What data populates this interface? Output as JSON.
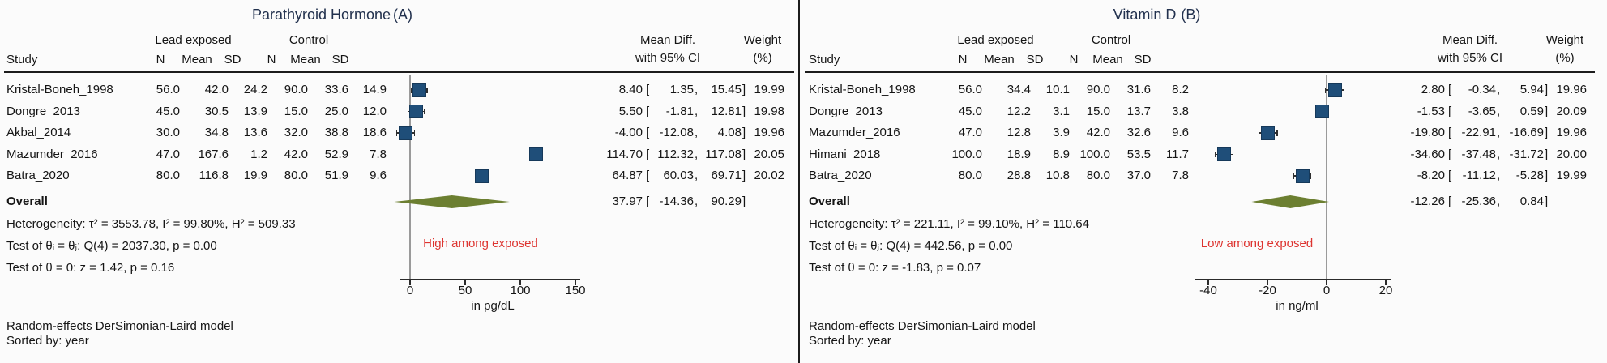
{
  "colors": {
    "marker": "#1f4e79",
    "marker_border": "#16395a",
    "diamond": "#6c7f31",
    "direction_label": "#dd3430",
    "title": "#22314e"
  },
  "footnote": {
    "line1": "Random-effects DerSimonian-Laird model",
    "line2": "Sorted by: year"
  },
  "panels": [
    {
      "title": "Parathyroid Hormone",
      "title_suffix": "(A)",
      "group1_header": "Lead exposed",
      "group2_header": "Control",
      "study_header": "Study",
      "cols": [
        "N",
        "Mean",
        "SD",
        "N",
        "Mean",
        "SD"
      ],
      "effect_header_line1": "Mean Diff.",
      "effect_header_line2": "with 95% CI",
      "weight_header_line1": "Weight",
      "weight_header_line2": "(%)",
      "rows": [
        {
          "study": "Kristal-Boneh_1998",
          "n1": "56.0",
          "mean1": "42.0",
          "sd1": "24.2",
          "n2": "90.0",
          "mean2": "33.6",
          "sd2": "14.9",
          "est": "8.40",
          "lo": "1.35",
          "hi": "15.45",
          "weight": "19.99"
        },
        {
          "study": "Dongre_2013",
          "n1": "45.0",
          "mean1": "30.5",
          "sd1": "13.9",
          "n2": "15.0",
          "mean2": "25.0",
          "sd2": "12.0",
          "est": "5.50",
          "lo": "-1.81",
          "hi": "12.81",
          "weight": "19.98"
        },
        {
          "study": "Akbal_2014",
          "n1": "30.0",
          "mean1": "34.8",
          "sd1": "13.6",
          "n2": "32.0",
          "mean2": "38.8",
          "sd2": "18.6",
          "est": "-4.00",
          "lo": "-12.08",
          "hi": "4.08",
          "weight": "19.96"
        },
        {
          "study": "Mazumder_2016",
          "n1": "47.0",
          "mean1": "167.6",
          "sd1": "1.2",
          "n2": "42.0",
          "mean2": "52.9",
          "sd2": "7.8",
          "est": "114.70",
          "lo": "112.32",
          "hi": "117.08",
          "weight": "20.05"
        },
        {
          "study": "Batra_2020",
          "n1": "80.0",
          "mean1": "116.8",
          "sd1": "19.9",
          "n2": "80.0",
          "mean2": "51.9",
          "sd2": "9.6",
          "est": "64.87",
          "lo": "60.03",
          "hi": "69.71",
          "weight": "20.02"
        }
      ],
      "overall": {
        "label": "Overall",
        "est": "37.97",
        "lo": "-14.36",
        "hi": "90.29"
      },
      "stats": [
        "Heterogeneity: τ² = 3553.78, I² = 99.80%, H² = 509.33",
        "Test of θᵢ = θⱼ: Q(4) = 2037.30, p = 0.00",
        "Test of θ = 0: z = 1.42, p = 0.16"
      ],
      "direction_label": "High among exposed",
      "axis_unit": "in pg/dL"
    },
    {
      "title": "Vitamin D",
      "title_suffix": "(B)",
      "group1_header": "Lead exposed",
      "group2_header": "Control",
      "study_header": "Study",
      "cols": [
        "N",
        "Mean",
        "SD",
        "N",
        "Mean",
        "SD"
      ],
      "effect_header_line1": "Mean Diff.",
      "effect_header_line2": "with 95% CI",
      "weight_header_line1": "Weight",
      "weight_header_line2": "(%)",
      "rows": [
        {
          "study": "Kristal-Boneh_1998",
          "n1": "56.0",
          "mean1": "34.4",
          "sd1": "10.1",
          "n2": "90.0",
          "mean2": "31.6",
          "sd2": "8.2",
          "est": "2.80",
          "lo": "-0.34",
          "hi": "5.94",
          "weight": "19.96"
        },
        {
          "study": "Dongre_2013",
          "n1": "45.0",
          "mean1": "12.2",
          "sd1": "3.1",
          "n2": "15.0",
          "mean2": "13.7",
          "sd2": "3.8",
          "est": "-1.53",
          "lo": "-3.65",
          "hi": "0.59",
          "weight": "20.09"
        },
        {
          "study": "Mazumder_2016",
          "n1": "47.0",
          "mean1": "12.8",
          "sd1": "3.9",
          "n2": "42.0",
          "mean2": "32.6",
          "sd2": "9.6",
          "est": "-19.80",
          "lo": "-22.91",
          "hi": "-16.69",
          "weight": "19.96"
        },
        {
          "study": "Himani_2018",
          "n1": "100.0",
          "mean1": "18.9",
          "sd1": "8.9",
          "n2": "100.0",
          "mean2": "53.5",
          "sd2": "11.7",
          "est": "-34.60",
          "lo": "-37.48",
          "hi": "-31.72",
          "weight": "20.00"
        },
        {
          "study": "Batra_2020",
          "n1": "80.0",
          "mean1": "28.8",
          "sd1": "10.8",
          "n2": "80.0",
          "mean2": "37.0",
          "sd2": "7.8",
          "est": "-8.20",
          "lo": "-11.12",
          "hi": "-5.28",
          "weight": "19.99"
        }
      ],
      "overall": {
        "label": "Overall",
        "est": "-12.26",
        "lo": "-25.36",
        "hi": "0.84"
      },
      "stats": [
        "Heterogeneity: τ² = 221.11, I² = 99.10%, H² = 110.64",
        "Test of θᵢ = θⱼ: Q(4) = 442.56, p = 0.00",
        "Test of θ = 0: z = -1.83, p = 0.07"
      ],
      "direction_label": "Low among exposed",
      "axis_unit": "in ng/ml"
    }
  ],
  "chart_data": [
    {
      "type": "forest",
      "panel": "A",
      "title": "Parathyroid Hormone (A)",
      "effect_measure": "Mean Diff. with 95% CI",
      "x_ticks": [
        0,
        50,
        100,
        150
      ],
      "x_unit": "in pg/dL",
      "reference_line": 0,
      "studies": [
        {
          "name": "Kristal-Boneh_1998",
          "est": 8.4,
          "lo": 1.35,
          "hi": 15.45,
          "weight": 19.99
        },
        {
          "name": "Dongre_2013",
          "est": 5.5,
          "lo": -1.81,
          "hi": 12.81,
          "weight": 19.98
        },
        {
          "name": "Akbal_2014",
          "est": -4.0,
          "lo": -12.08,
          "hi": 4.08,
          "weight": 19.96
        },
        {
          "name": "Mazumder_2016",
          "est": 114.7,
          "lo": 112.32,
          "hi": 117.08,
          "weight": 20.05
        },
        {
          "name": "Batra_2020",
          "est": 64.87,
          "lo": 60.03,
          "hi": 69.71,
          "weight": 20.02
        }
      ],
      "overall": {
        "est": 37.97,
        "lo": -14.36,
        "hi": 90.29
      },
      "annotation": "High among exposed"
    },
    {
      "type": "forest",
      "panel": "B",
      "title": "Vitamin D (B)",
      "effect_measure": "Mean Diff. with 95% CI",
      "x_ticks": [
        -40,
        -20,
        0,
        20
      ],
      "x_unit": "in ng/ml",
      "reference_line": 0,
      "studies": [
        {
          "name": "Kristal-Boneh_1998",
          "est": 2.8,
          "lo": -0.34,
          "hi": 5.94,
          "weight": 19.96
        },
        {
          "name": "Dongre_2013",
          "est": -1.53,
          "lo": -3.65,
          "hi": 0.59,
          "weight": 20.09
        },
        {
          "name": "Mazumder_2016",
          "est": -19.8,
          "lo": -22.91,
          "hi": -16.69,
          "weight": 19.96
        },
        {
          "name": "Himani_2018",
          "est": -34.6,
          "lo": -37.48,
          "hi": -31.72,
          "weight": 20.0
        },
        {
          "name": "Batra_2020",
          "est": -8.2,
          "lo": -11.12,
          "hi": -5.28,
          "weight": 19.99
        }
      ],
      "overall": {
        "est": -12.26,
        "lo": -25.36,
        "hi": 0.84
      },
      "annotation": "Low among exposed"
    }
  ]
}
